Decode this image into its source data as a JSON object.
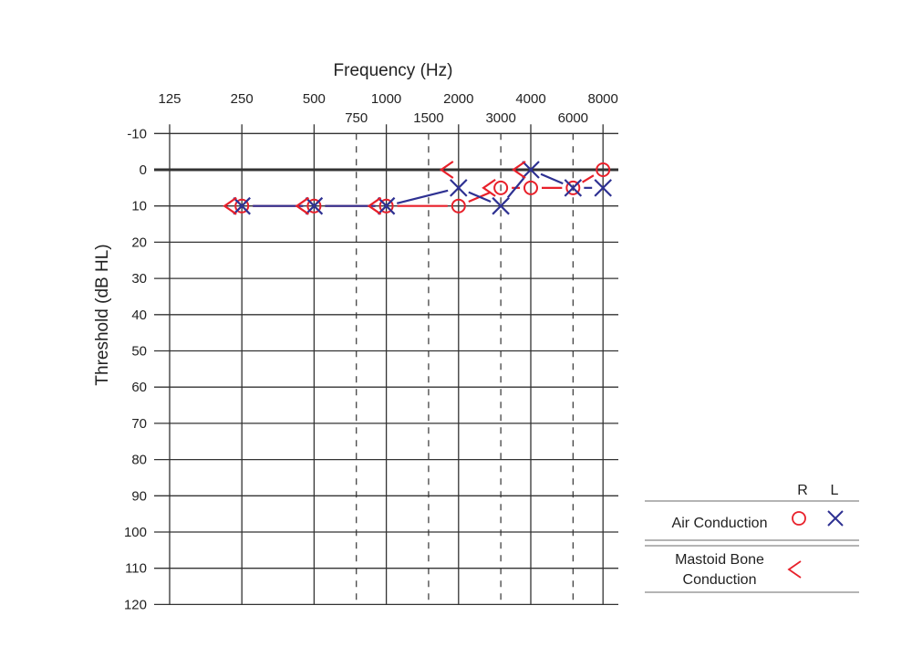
{
  "chart_data": {
    "type": "scatter",
    "title": "",
    "xlabel": "Frequency (Hz)",
    "ylabel": "Threshold (dB HL)",
    "x_ticks_major": [
      "125",
      "250",
      "500",
      "1000",
      "2000",
      "4000",
      "8000"
    ],
    "x_ticks_minor": [
      "750",
      "1500",
      "3000",
      "6000"
    ],
    "y_ticks": [
      "-10",
      "0",
      "10",
      "20",
      "30",
      "40",
      "50",
      "60",
      "70",
      "80",
      "90",
      "100",
      "110",
      "120"
    ],
    "ylim": [
      -10,
      120
    ],
    "y_inverted": true,
    "grid": true,
    "legend_position": "lower right",
    "series": [
      {
        "name": "Air Conduction R",
        "symbol": "circle",
        "color": "#e8202a",
        "connected": true,
        "x": [
          250,
          500,
          1000,
          2000,
          3000,
          4000,
          6000,
          8000
        ],
        "values": [
          10,
          10,
          10,
          10,
          5,
          5,
          5,
          0
        ]
      },
      {
        "name": "Air Conduction L",
        "symbol": "x",
        "color": "#2e3192",
        "connected": true,
        "x": [
          250,
          500,
          1000,
          2000,
          3000,
          4000,
          6000,
          8000
        ],
        "values": [
          10,
          10,
          10,
          5,
          10,
          0,
          5,
          5
        ]
      },
      {
        "name": "Mastoid Bone Conduction R",
        "symbol": "<",
        "color": "#e8202a",
        "connected": false,
        "x": [
          250,
          500,
          1000,
          2000,
          3000,
          4000
        ],
        "values": [
          10,
          10,
          10,
          0,
          5,
          0
        ]
      }
    ]
  },
  "axes": {
    "xlabel": "Frequency (Hz)",
    "ylabel": "Threshold (dB HL)"
  },
  "legend": {
    "col_r": "R",
    "col_l": "L",
    "air": "Air Conduction",
    "bone_line1": "Mastoid Bone",
    "bone_line2": "Conduction"
  },
  "colors": {
    "right": "#e8202a",
    "left": "#2e3192",
    "grid": "#333333"
  }
}
